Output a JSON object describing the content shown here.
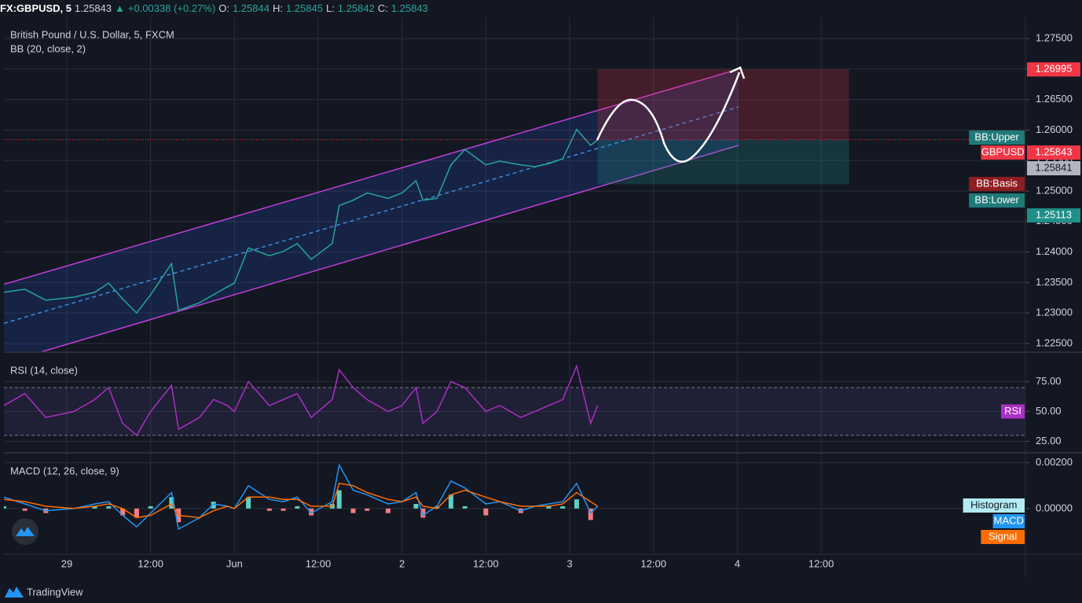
{
  "header": {
    "symbol": "FX:GBPUSD, 5",
    "last": "1.25843",
    "change": "+0.00338 (+0.27%)",
    "ohlc": [
      {
        "key": "O:",
        "value": "1.25844"
      },
      {
        "key": "H:",
        "value": "1.25845"
      },
      {
        "key": "L:",
        "value": "1.25842"
      },
      {
        "key": "C:",
        "value": "1.25843"
      }
    ]
  },
  "brand": "TradingView",
  "chart_data": [
    {
      "type": "line",
      "title": "British Pound / U.S. Dollar, 5, FXCM",
      "subtitle": "BB (20, close, 2)",
      "x": [
        0,
        3,
        6,
        10,
        13,
        15,
        17,
        19,
        21,
        24,
        25,
        28,
        30,
        32,
        33,
        35,
        38,
        40,
        42,
        44,
        47,
        48,
        50,
        52,
        55,
        57,
        59,
        60,
        62,
        64,
        66,
        69,
        71,
        74,
        76,
        78,
        80,
        82,
        84,
        85
      ],
      "xlim": [
        0,
        146.25
      ],
      "xticks": [
        {
          "value": 9,
          "label": "29"
        },
        {
          "value": 21,
          "label": "12:00"
        },
        {
          "value": 33,
          "label": "Jun"
        },
        {
          "value": 45,
          "label": "12:00"
        },
        {
          "value": 57,
          "label": "2"
        },
        {
          "value": 69,
          "label": "12:00"
        },
        {
          "value": 81,
          "label": "3"
        },
        {
          "value": 93,
          "label": "12:00"
        },
        {
          "value": 105,
          "label": "4"
        },
        {
          "value": 117,
          "label": "12:00"
        }
      ],
      "series": [
        {
          "name": "GBPUSD",
          "color": "#26a69a",
          "values": [
            1.2334,
            1.2339,
            1.2321,
            1.2326,
            1.2334,
            1.2349,
            1.2323,
            1.23,
            1.233,
            1.2381,
            1.2304,
            1.2317,
            1.233,
            1.2343,
            1.2349,
            1.2407,
            1.2394,
            1.2401,
            1.2414,
            1.2388,
            1.2414,
            1.2476,
            1.2485,
            1.2497,
            1.2488,
            1.2497,
            1.2517,
            1.2485,
            1.2488,
            1.2543,
            1.2568,
            1.2543,
            1.2549,
            1.2543,
            1.254,
            1.2545,
            1.2553,
            1.2601,
            1.2575,
            1.2584
          ]
        }
      ],
      "ylim": [
        1.2237,
        1.2785
      ],
      "yticks": [
        {
          "value": 1.275,
          "label": "1.27500"
        },
        {
          "value": 1.27,
          "label": "1.27000"
        },
        {
          "value": 1.265,
          "label": "1.26500"
        },
        {
          "value": 1.26,
          "label": "1.26000"
        },
        {
          "value": 1.255,
          "label": "1.25500"
        },
        {
          "value": 1.25,
          "label": "1.25000"
        },
        {
          "value": 1.245,
          "label": "1.24500"
        },
        {
          "value": 1.24,
          "label": "1.24000"
        },
        {
          "value": 1.235,
          "label": "1.23500"
        },
        {
          "value": 1.23,
          "label": "1.23000"
        },
        {
          "value": 1.225,
          "label": "1.22500"
        }
      ],
      "grid": true,
      "channel": {
        "x": [
          0,
          105.2
        ],
        "upper": [
          1.2347,
          1.27
        ],
        "middle": [
          1.2283,
          1.2638
        ],
        "lower": [
          1.2218,
          1.2575
        ],
        "color": "#c13fd6"
      },
      "position": {
        "x": [
          85,
          121
        ],
        "entry": 1.25843,
        "target": {
          "value": 1.26995,
          "label": "1.26995"
        },
        "stop": {
          "value": 1.25113,
          "label": "1.25113"
        }
      },
      "price_labels": [
        {
          "name": "BB:Upper",
          "color": "#1f7a78"
        },
        {
          "name": "GBPUSD",
          "label": "1.25843",
          "color": "#f23645"
        },
        {
          "label": "1.25841",
          "color": "#b2b5be"
        },
        {
          "name": "BB:Basis",
          "color": "#8e1d22"
        },
        {
          "name": "BB:Lower",
          "color": "#1f7a78"
        }
      ]
    },
    {
      "type": "line",
      "title": "RSI (14, close)",
      "series": [
        {
          "name": "RSI",
          "color": "#ab2fc4",
          "values": [
            55,
            65,
            45,
            50,
            60,
            70,
            40,
            30,
            50,
            72,
            35,
            45,
            60,
            55,
            50,
            75,
            55,
            60,
            65,
            45,
            60,
            85,
            70,
            60,
            50,
            55,
            70,
            40,
            50,
            75,
            70,
            50,
            55,
            45,
            50,
            55,
            60,
            88,
            40,
            55
          ]
        }
      ],
      "ylim": [
        16,
        99
      ],
      "yticks": [
        {
          "value": 25,
          "label": "25.00"
        },
        {
          "value": 50,
          "label": "50.00"
        },
        {
          "value": 75,
          "label": "75.00"
        }
      ],
      "band": [
        30,
        70
      ]
    },
    {
      "type": "line",
      "title": "MACD (12, 26, close, 9)",
      "series": [
        {
          "name": "Histogram",
          "type": "bar",
          "color": "#5fd0c4",
          "negative_color": "#f77c80",
          "values": [
            0.0001,
            -0.0001,
            -0.0002,
            0,
            0.0001,
            0.0001,
            -0.0003,
            -0.0004,
            0.0001,
            0.0005,
            -0.0006,
            0,
            0.0003,
            0,
            0,
            0.0005,
            -0.0001,
            -0.0001,
            0.0001,
            -0.0003,
            0.0002,
            0.0008,
            -0.0002,
            -0.0001,
            -0.0002,
            0,
            0.0002,
            -0.0004,
            0.0001,
            0.0006,
            0.0001,
            -0.0003,
            0,
            -0.0002,
            0,
            0.0001,
            0.0001,
            0.0004,
            -0.0005,
            0
          ]
        },
        {
          "name": "MACD",
          "color": "#2196f3",
          "values": [
            0.0005,
            0.0002,
            -0.0001,
            0,
            0.0002,
            0.0003,
            -0.0003,
            -0.0008,
            -0.0002,
            0.0007,
            -0.0009,
            -0.0004,
            0.0002,
            0.0001,
            0,
            0.001,
            0.0004,
            0.0003,
            0.0005,
            -0.0002,
            0.0003,
            0.0019,
            0.0008,
            0.0006,
            0.0002,
            0.0003,
            0.0007,
            -0.0003,
            0.0001,
            0.0012,
            0.0009,
            0.0002,
            0.0003,
            -0.0001,
            0.0001,
            0.0002,
            0.0003,
            0.0011,
            -0.0002,
            0.0001
          ]
        },
        {
          "name": "Signal",
          "color": "#ff6d00",
          "values": [
            0.0004,
            0.0003,
            0.0001,
            0,
            0.0001,
            0.0002,
            0,
            -0.0004,
            -0.0003,
            0.0002,
            -0.0003,
            -0.0004,
            -0.0001,
            0.0001,
            0,
            0.0005,
            0.0005,
            0.0004,
            0.0004,
            0.0001,
            0.0001,
            0.0011,
            0.001,
            0.0007,
            0.0004,
            0.0003,
            0.0005,
            0.0001,
            0,
            0.0006,
            0.0008,
            0.0005,
            0.0003,
            0.0001,
            0.0001,
            0.0001,
            0.0002,
            0.0007,
            0.0003,
            0.0001
          ]
        }
      ],
      "ylim": [
        -0.002,
        0.0024
      ],
      "yticks": [
        {
          "value": 0.002,
          "label": "0.00200"
        },
        {
          "value": 0,
          "label": "0.00000"
        }
      ]
    }
  ]
}
